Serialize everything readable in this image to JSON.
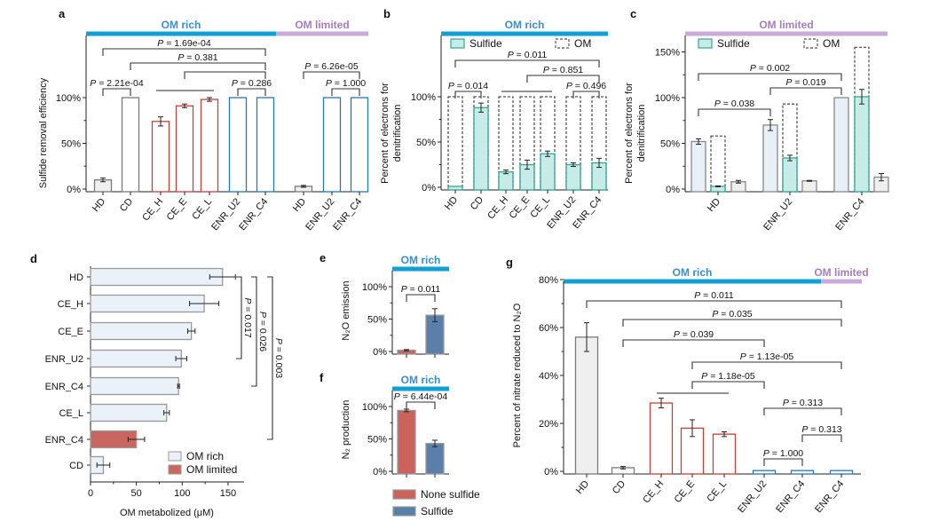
{
  "colors": {
    "om_rich_band": "#12a0d3",
    "om_rich_text": "#3b8ed0",
    "om_limited_band": "#caaad9",
    "om_limited_text": "#a97cc2",
    "gray": "#7a7a7a",
    "gray_fill": "#efefef",
    "red": "#c8403a",
    "blue": "#2477b8",
    "teal_fill": "#c7ebe6",
    "teal_stroke": "#36a596",
    "light_blue_fill": "#e9eff7",
    "d_rich_fill": "#eaf1f8",
    "d_limited_fill": "#c9665f",
    "none_sulfide": "#c9635c",
    "sulfide": "#5a80a9"
  },
  "chart_data": [
    {
      "id": "a",
      "panel_label": "a",
      "type": "bar",
      "ylabel": [
        "Sulfide removal efficiency"
      ],
      "yticks": [
        "0%",
        "50%",
        "100%"
      ],
      "ytick_values": [
        0,
        50,
        100
      ],
      "bands": [
        {
          "label": "OM rich",
          "kind": "rich"
        },
        {
          "label": "OM limited",
          "kind": "limited"
        }
      ],
      "categories": [
        "HD",
        "CD",
        "CE_H",
        "CE_E",
        "CE_L",
        "ENR_U2",
        "ENR_C4",
        "HD",
        "ENR_U2",
        "ENR_C4"
      ],
      "series": [
        {
          "values": [
            10,
            100,
            74,
            91,
            98,
            100,
            100,
            3,
            100,
            100
          ],
          "errors": [
            2,
            0,
            5,
            2,
            2,
            0,
            0,
            1,
            0,
            0
          ],
          "fills": [
            "gray_fill",
            "#ffffff",
            "#ffffff",
            "#ffffff",
            "#ffffff",
            "#ffffff",
            "#ffffff",
            "gray_fill",
            "#ffffff",
            "#ffffff"
          ],
          "strokes": [
            "gray",
            "gray",
            "red",
            "red",
            "red",
            "blue",
            "blue",
            "gray",
            "blue",
            "blue"
          ]
        }
      ],
      "group_lines": [
        {
          "from": 2,
          "to": 4
        }
      ],
      "brackets": [
        {
          "from": 0,
          "to": 6,
          "label": "P = 1.69e-04"
        },
        {
          "from": 1,
          "to": 6,
          "label": "P = 0.381"
        },
        {
          "from": 3,
          "to": 6,
          "label": ""
        },
        {
          "from": 0,
          "to": 1,
          "label": "P = 2.21e-04"
        },
        {
          "from": 5,
          "to": 6,
          "label": "P = 0.286"
        },
        {
          "from": 7,
          "to": 9,
          "label": "P = 6.26e-05"
        },
        {
          "from": 8,
          "to": 9,
          "label": "P = 1.000"
        }
      ]
    },
    {
      "id": "b",
      "panel_label": "b",
      "type": "bar",
      "ylabel": [
        "Percent of electrons for",
        "denitrification"
      ],
      "yticks": [
        "0%",
        "50%",
        "100%"
      ],
      "ytick_values": [
        0,
        50,
        100
      ],
      "bands": [
        {
          "label": "OM rich",
          "kind": "rich"
        }
      ],
      "legend": [
        {
          "label": "Sulfide",
          "style": "teal"
        },
        {
          "label": "OM",
          "style": "dashed"
        }
      ],
      "categories": [
        "HD",
        "CD",
        "CE_H",
        "CE_E",
        "CE_L",
        "ENR_U2",
        "ENR_C4"
      ],
      "series": [
        {
          "name": "OM",
          "values": [
            100,
            100,
            100,
            100,
            100,
            100,
            100
          ],
          "errors": [
            0,
            0,
            0,
            0,
            0,
            0,
            0
          ],
          "fill": "none",
          "stroke": "#555555",
          "dashed": true
        },
        {
          "name": "Sulfide",
          "values": [
            1,
            88,
            17,
            25,
            37,
            25,
            27
          ],
          "errors": [
            0,
            5,
            2,
            5,
            3,
            2,
            5
          ],
          "fill": "teal_fill",
          "stroke": "teal_stroke"
        }
      ],
      "group_lines": [
        {
          "from": 2,
          "to": 4
        }
      ],
      "brackets": [
        {
          "from": 0,
          "to": 6,
          "label": "P = 0.011"
        },
        {
          "from": 3,
          "to": 6,
          "label": "P = 0.851"
        },
        {
          "from": 0,
          "to": 1,
          "label": "P = 0.014"
        },
        {
          "from": 5,
          "to": 6,
          "label": "P = 0.496"
        }
      ]
    },
    {
      "id": "c",
      "panel_label": "c",
      "type": "bar",
      "ylabel": [
        "Percent of electrons for",
        "denitrification"
      ],
      "yticks": [
        "0%",
        "50%",
        "100%",
        "150%"
      ],
      "ytick_values": [
        0,
        50,
        100,
        150
      ],
      "bands": [
        {
          "label": "OM limited",
          "kind": "limited"
        }
      ],
      "legend": [
        {
          "label": "Sulfide",
          "style": "teal"
        },
        {
          "label": "OM",
          "style": "dashed"
        }
      ],
      "categories": [
        "HD",
        "ENR_U2",
        "ENR_C4"
      ],
      "series": [
        {
          "values": [
            52,
            70,
            100
          ],
          "errors": [
            3,
            6,
            0
          ],
          "fill": "light_blue_fill",
          "stroke": "#888888"
        },
        {
          "name": "OM",
          "values": [
            58,
            93,
            155
          ],
          "errors": [
            0,
            0,
            0
          ],
          "fill": "none",
          "stroke": "#555555",
          "dashed": true
        },
        {
          "name": "Sulfide",
          "values": [
            3,
            34,
            101
          ],
          "errors": [
            0.5,
            3,
            8
          ],
          "fill": "teal_fill",
          "stroke": "teal_stroke"
        },
        {
          "values": [
            8,
            9,
            13
          ],
          "errors": [
            1.5,
            0.5,
            4
          ],
          "fill": "gray_fill",
          "stroke": "#888888"
        }
      ],
      "brackets": [
        {
          "from": 0,
          "to": 2,
          "label": "P = 0.002"
        },
        {
          "from": 1,
          "to": 2,
          "label": "P = 0.019"
        },
        {
          "from": 0,
          "to": 1,
          "label": "P = 0.038"
        }
      ]
    },
    {
      "id": "d",
      "panel_label": "d",
      "type": "bar",
      "orientation": "horizontal",
      "xlabel": "OM metabolized (μM)",
      "xticks": [
        "0",
        "50",
        "100",
        "150"
      ],
      "xtick_values": [
        0,
        50,
        100,
        150
      ],
      "categories": [
        "HD",
        "CE_H",
        "CE_E",
        "ENR_U2",
        "ENR_C4",
        "CE_L",
        "ENR_C4",
        "CD"
      ],
      "values": [
        144,
        124,
        110,
        99,
        96,
        83,
        50,
        14
      ],
      "errors": [
        14,
        16,
        4,
        6,
        1,
        3,
        9,
        7
      ],
      "groups": [
        "rich",
        "rich",
        "rich",
        "rich",
        "rich",
        "rich",
        "limited",
        "rich"
      ],
      "legend": [
        {
          "label": "OM rich",
          "kind": "rich"
        },
        {
          "label": "OM limited",
          "kind": "limited"
        }
      ],
      "brackets": [
        {
          "from": 0,
          "to": 3,
          "label": "P = 0.017"
        },
        {
          "from": 0,
          "to": 4,
          "label": "P = 0.026"
        },
        {
          "from": 0,
          "to": 6,
          "label": "P = 0.003"
        }
      ]
    },
    {
      "id": "e",
      "panel_label": "e",
      "type": "bar",
      "ylabel": [
        "N₂O emission"
      ],
      "yticks": [
        "0%",
        "50%",
        "100%"
      ],
      "ytick_values": [
        0,
        50,
        100
      ],
      "bands": [
        {
          "label": "OM rich",
          "kind": "rich"
        }
      ],
      "categories": [
        "None sulfide",
        "Sulfide"
      ],
      "series": [
        {
          "values": [
            2,
            56
          ],
          "errors": [
            1,
            10
          ],
          "fills": [
            "none_sulfide",
            "sulfide"
          ],
          "strokes": [
            "#999999",
            "#999999"
          ]
        }
      ],
      "brackets": [
        {
          "from": 0,
          "to": 1,
          "label": "P = 0.011"
        }
      ]
    },
    {
      "id": "f",
      "panel_label": "f",
      "type": "bar",
      "ylabel": [
        "N₂ production"
      ],
      "yticks": [
        "0%",
        "50%",
        "100%"
      ],
      "ytick_values": [
        0,
        50,
        100
      ],
      "bands": [
        {
          "label": "OM rich",
          "kind": "rich"
        }
      ],
      "categories": [
        "None sulfide",
        "Sulfide"
      ],
      "series": [
        {
          "values": [
            94,
            43
          ],
          "errors": [
            2,
            5
          ],
          "fills": [
            "none_sulfide",
            "sulfide"
          ],
          "strokes": [
            "#999999",
            "#999999"
          ]
        }
      ],
      "legend": [
        {
          "label": "None sulfide",
          "color": "none_sulfide"
        },
        {
          "label": "Sulfide",
          "color": "sulfide"
        }
      ],
      "brackets": [
        {
          "from": 0,
          "to": 1,
          "label": "P = 6.44e-04"
        }
      ]
    },
    {
      "id": "g",
      "panel_label": "g",
      "type": "bar",
      "ylabel": [
        "Percent of nitrate reduced to N₂O"
      ],
      "yticks": [
        "0%",
        "20%",
        "40%",
        "60%",
        "80%"
      ],
      "ytick_values": [
        0,
        20,
        40,
        60,
        80
      ],
      "bands": [
        {
          "label": "OM rich",
          "kind": "rich"
        },
        {
          "label": "OM limited",
          "kind": "limited"
        }
      ],
      "categories": [
        "HD",
        "CD",
        "CE_H",
        "CE_E",
        "CE_L",
        "ENR_U2",
        "ENR_C4",
        "ENR_C4"
      ],
      "series": [
        {
          "values": [
            56,
            1.5,
            28.5,
            18,
            15.5,
            0.3,
            0.3,
            0.3
          ],
          "errors": [
            6,
            0.5,
            2,
            3.5,
            1,
            0,
            0,
            0
          ],
          "fills": [
            "gray_fill",
            "#ffffff",
            "#ffffff",
            "#ffffff",
            "#ffffff",
            "#ffffff",
            "#ffffff",
            "#ffffff"
          ],
          "strokes": [
            "gray",
            "gray",
            "red",
            "red",
            "red",
            "blue",
            "blue",
            "blue"
          ]
        }
      ],
      "group_lines": [
        {
          "from": 2,
          "to": 4
        }
      ],
      "brackets": [
        {
          "from": 0,
          "to": 7,
          "label": "P = 0.011"
        },
        {
          "from": 1,
          "to": 7,
          "label": "P = 0.035"
        },
        {
          "from": 1,
          "to": 5,
          "label": "P = 0.039"
        },
        {
          "from": 3,
          "to": 7,
          "label": "P = 1.13e-05"
        },
        {
          "from": 3,
          "to": 5,
          "label": "P = 1.18e-05"
        },
        {
          "from": 5,
          "to": 7,
          "label": "P = 0.313"
        },
        {
          "from": 6,
          "to": 7,
          "label": "P = 0.313"
        },
        {
          "from": 5,
          "to": 6,
          "label": "P = 1.000"
        }
      ]
    }
  ]
}
